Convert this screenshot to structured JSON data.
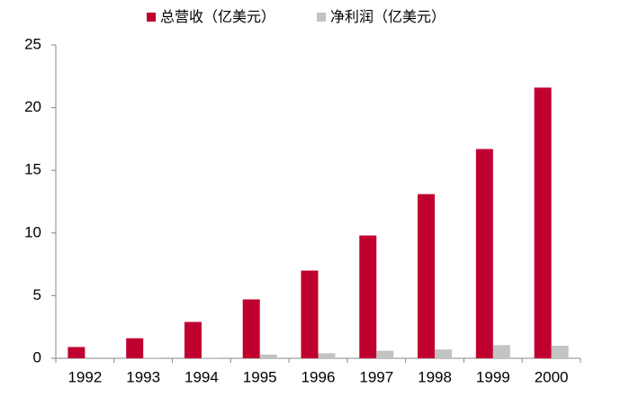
{
  "chart_data": {
    "type": "bar",
    "categories": [
      "1992",
      "1993",
      "1994",
      "1995",
      "1996",
      "1997",
      "1998",
      "1999",
      "2000"
    ],
    "series": [
      {
        "name": "总营收（亿美元）",
        "color": "#c0002f",
        "values": [
          0.9,
          1.6,
          2.9,
          4.7,
          7.0,
          9.8,
          13.1,
          16.7,
          21.6
        ]
      },
      {
        "name": "净利润（亿美元）",
        "color": "#c3c3c3",
        "values": [
          0.0,
          0.02,
          0.05,
          0.3,
          0.4,
          0.6,
          0.7,
          1.05,
          1.0
        ]
      }
    ],
    "ylim": [
      0,
      25
    ],
    "yticks": [
      0,
      5,
      10,
      15,
      20,
      25
    ],
    "grid": false,
    "legend": "top"
  }
}
